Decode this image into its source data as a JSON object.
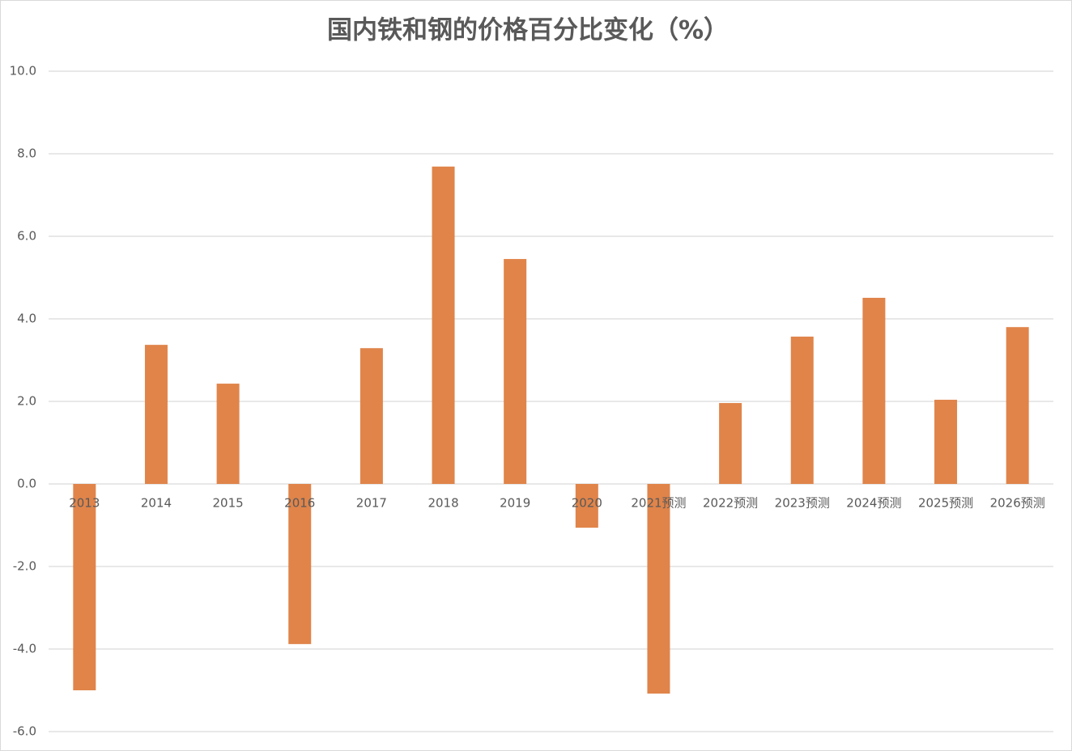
{
  "chart_data": {
    "type": "bar",
    "title": "国内铁和钢的价格百分比变化（%）",
    "categories": [
      "2013",
      "2014",
      "2015",
      "2016",
      "2017",
      "2018",
      "2019",
      "2020",
      "2021预测",
      "2022预测",
      "2023预测",
      "2024预测",
      "2025预测",
      "2026预测"
    ],
    "values": [
      -5.0,
      3.37,
      2.43,
      -3.88,
      3.29,
      7.69,
      5.45,
      -1.06,
      -5.08,
      1.96,
      3.57,
      4.51,
      2.04,
      3.8
    ],
    "color": "#e0844a",
    "ylim": [
      -6,
      10
    ],
    "yticks": [
      {
        "value": -6,
        "label": "-6.0"
      },
      {
        "value": -4,
        "label": "-4.0"
      },
      {
        "value": -2,
        "label": "-2.0"
      },
      {
        "value": 0,
        "label": "0.0"
      },
      {
        "value": 2,
        "label": "2.0"
      },
      {
        "value": 4,
        "label": "4.0"
      },
      {
        "value": 6,
        "label": "6.0"
      },
      {
        "value": 8,
        "label": "8.0"
      },
      {
        "value": 10,
        "label": "10.0"
      }
    ],
    "grid": true
  }
}
